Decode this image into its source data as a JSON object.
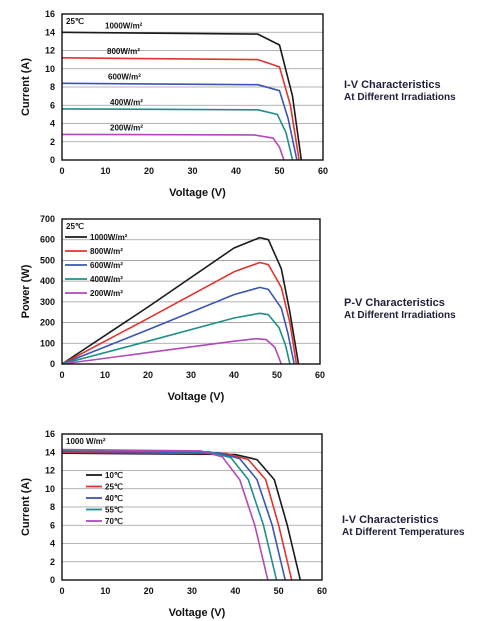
{
  "chart_data": [
    {
      "type": "line",
      "title": "I-V Characteristics",
      "subtitle": "At Different Irradiations",
      "xlabel": "Voltage (V)",
      "ylabel": "Current (A)",
      "xlim": [
        0,
        60
      ],
      "ylim": [
        0,
        16
      ],
      "xticks": [
        0,
        10,
        20,
        30,
        40,
        50,
        60
      ],
      "yticks": [
        0,
        2,
        4,
        6,
        8,
        10,
        12,
        14,
        16
      ],
      "grid": "horizontal",
      "condition": "25℃",
      "label_style": "inline",
      "series": [
        {
          "name": "1000W/m²",
          "color": "#1a1a1a",
          "values": [
            [
              0,
              14.0
            ],
            [
              45,
              13.8
            ],
            [
              50,
              12.6
            ],
            [
              53,
              7.0
            ],
            [
              55,
              0
            ]
          ]
        },
        {
          "name": "800W/m²",
          "color": "#e0342e",
          "values": [
            [
              0,
              11.2
            ],
            [
              45,
              11.0
            ],
            [
              50,
              10.2
            ],
            [
              52.5,
              6.0
            ],
            [
              54.5,
              0
            ]
          ]
        },
        {
          "name": "600W/m²",
          "color": "#3b55b5",
          "values": [
            [
              0,
              8.4
            ],
            [
              45,
              8.25
            ],
            [
              50,
              7.6
            ],
            [
              52,
              4.5
            ],
            [
              54,
              0
            ]
          ]
        },
        {
          "name": "400W/m²",
          "color": "#1e8f88",
          "values": [
            [
              0,
              5.6
            ],
            [
              45,
              5.5
            ],
            [
              49.5,
              5.0
            ],
            [
              51.5,
              3.0
            ],
            [
              53,
              0
            ]
          ]
        },
        {
          "name": "200W/m²",
          "color": "#b04ab8",
          "values": [
            [
              0,
              2.8
            ],
            [
              44,
              2.75
            ],
            [
              48.5,
              2.4
            ],
            [
              50,
              1.4
            ],
            [
              51,
              0
            ]
          ]
        }
      ]
    },
    {
      "type": "line",
      "title": "P-V Characteristics",
      "subtitle": "At Different Irradiations",
      "xlabel": "Voltage (V)",
      "ylabel": "Power (W)",
      "xlim": [
        0,
        60
      ],
      "ylim": [
        0,
        700
      ],
      "xticks": [
        0,
        10,
        20,
        30,
        40,
        50,
        60
      ],
      "yticks": [
        0,
        100,
        200,
        300,
        400,
        500,
        600,
        700
      ],
      "grid": "horizontal",
      "condition": "25℃",
      "label_style": "legend",
      "series": [
        {
          "name": "1000W/m²",
          "color": "#1a1a1a",
          "values": [
            [
              0,
              0
            ],
            [
              20,
              275
            ],
            [
              40,
              560
            ],
            [
              46,
              610
            ],
            [
              48,
              600
            ],
            [
              51,
              460
            ],
            [
              53,
              250
            ],
            [
              55,
              0
            ]
          ]
        },
        {
          "name": "800W/m²",
          "color": "#e0342e",
          "values": [
            [
              0,
              0
            ],
            [
              20,
              220
            ],
            [
              40,
              445
            ],
            [
              46,
              490
            ],
            [
              48,
              480
            ],
            [
              51,
              370
            ],
            [
              53,
              200
            ],
            [
              54.5,
              0
            ]
          ]
        },
        {
          "name": "600W/m²",
          "color": "#3b55b5",
          "values": [
            [
              0,
              0
            ],
            [
              20,
              165
            ],
            [
              40,
              335
            ],
            [
              46,
              370
            ],
            [
              48,
              360
            ],
            [
              51,
              270
            ],
            [
              52.5,
              150
            ],
            [
              54,
              0
            ]
          ]
        },
        {
          "name": "400W/m²",
          "color": "#1e8f88",
          "values": [
            [
              0,
              0
            ],
            [
              20,
              110
            ],
            [
              40,
              222
            ],
            [
              46,
              245
            ],
            [
              48,
              238
            ],
            [
              50.5,
              175
            ],
            [
              52,
              90
            ],
            [
              53,
              0
            ]
          ]
        },
        {
          "name": "200W/m²",
          "color": "#b04ab8",
          "values": [
            [
              0,
              0
            ],
            [
              20,
              55
            ],
            [
              40,
              110
            ],
            [
              45,
              122
            ],
            [
              47.5,
              118
            ],
            [
              49.5,
              80
            ],
            [
              51,
              0
            ]
          ]
        }
      ]
    },
    {
      "type": "line",
      "title": "I-V Characteristics",
      "subtitle": "At Different Temperatures",
      "xlabel": "Voltage (V)",
      "ylabel": "Current (A)",
      "xlim": [
        0,
        60
      ],
      "ylim": [
        0,
        16
      ],
      "xticks": [
        0,
        10,
        20,
        30,
        40,
        50,
        60
      ],
      "yticks": [
        0,
        2,
        4,
        6,
        8,
        10,
        12,
        14,
        16
      ],
      "grid": "horizontal",
      "condition": "1000 W/m²",
      "label_style": "legend",
      "series": [
        {
          "name": "10℃",
          "color": "#1a1a1a",
          "values": [
            [
              0,
              13.9
            ],
            [
              40,
              13.75
            ],
            [
              45,
              13.2
            ],
            [
              49,
              11.0
            ],
            [
              52,
              6.0
            ],
            [
              55,
              0
            ]
          ]
        },
        {
          "name": "25℃",
          "color": "#e0342e",
          "values": [
            [
              0,
              14.0
            ],
            [
              38,
              13.85
            ],
            [
              43,
              13.2
            ],
            [
              47,
              11.0
            ],
            [
              50,
              6.0
            ],
            [
              53,
              0
            ]
          ]
        },
        {
          "name": "40℃",
          "color": "#3b55b5",
          "values": [
            [
              0,
              14.1
            ],
            [
              36,
              13.95
            ],
            [
              41,
              13.3
            ],
            [
              45,
              11.0
            ],
            [
              48.5,
              6.0
            ],
            [
              51.5,
              0
            ]
          ]
        },
        {
          "name": "55℃",
          "color": "#1e8f88",
          "values": [
            [
              0,
              14.2
            ],
            [
              34,
              14.05
            ],
            [
              39,
              13.4
            ],
            [
              43,
              11.0
            ],
            [
              46.5,
              6.0
            ],
            [
              49.5,
              0
            ]
          ]
        },
        {
          "name": "70℃",
          "color": "#b04ab8",
          "values": [
            [
              0,
              14.3
            ],
            [
              32,
              14.15
            ],
            [
              37,
              13.5
            ],
            [
              41,
              11.0
            ],
            [
              44.5,
              6.0
            ],
            [
              47.5,
              0
            ]
          ]
        }
      ]
    }
  ]
}
